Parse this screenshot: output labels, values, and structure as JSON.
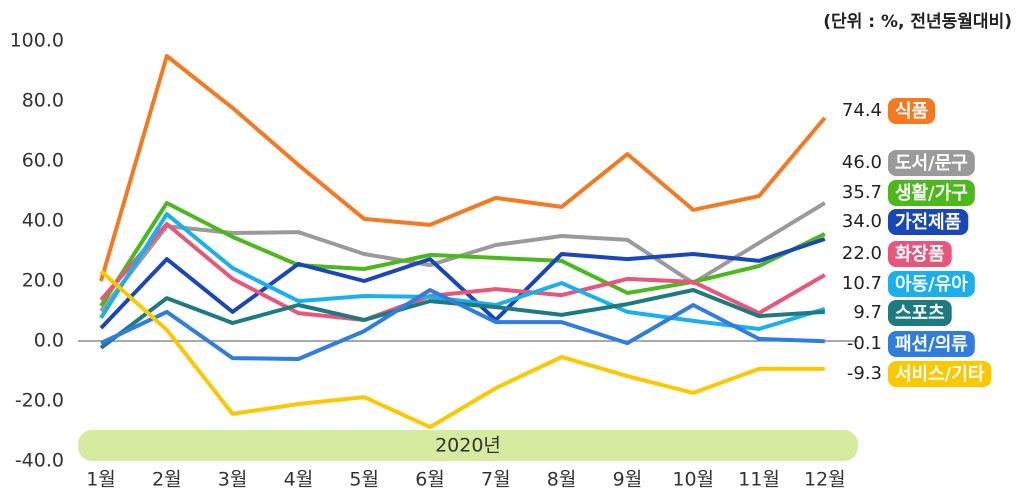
{
  "chart_data": {
    "type": "line",
    "unit_note": "(단위 : %, 전년동월대비)",
    "period_label": "2020년",
    "categories": [
      "1월",
      "2월",
      "3월",
      "4월",
      "5월",
      "6월",
      "7월",
      "8월",
      "9월",
      "10월",
      "11월",
      "12월"
    ],
    "ylim": [
      -40,
      100
    ],
    "yticks": [
      {
        "value": -40,
        "label": "-40.0"
      },
      {
        "value": -20,
        "label": "-20.0"
      },
      {
        "value": 0,
        "label": "0.0"
      },
      {
        "value": 20,
        "label": "20.0"
      },
      {
        "value": 40,
        "label": "40.0"
      },
      {
        "value": 60,
        "label": "60.0"
      },
      {
        "value": 80,
        "label": "80.0"
      },
      {
        "value": 100,
        "label": "100.0"
      }
    ],
    "series": [
      {
        "name": "식품",
        "color": "#f47920",
        "values": [
          20,
          95,
          77.7,
          58.7,
          40.7,
          38.7,
          47.7,
          44.7,
          62.3,
          43.7,
          48.3,
          74.4
        ],
        "value_labels": [
          null,
          null,
          null,
          null,
          null,
          null,
          null,
          null,
          null,
          null,
          null,
          "74.4"
        ]
      },
      {
        "name": "도서/문구",
        "color": "#9a9a9a",
        "values": [
          10,
          38.3,
          36,
          36.3,
          29,
          25.3,
          32,
          35,
          33.7,
          19.3,
          32.7,
          46.0
        ],
        "value_labels": [
          null,
          null,
          null,
          null,
          null,
          null,
          null,
          null,
          null,
          null,
          null,
          "46.0"
        ]
      },
      {
        "name": "생활/가구",
        "color": "#4cb81c",
        "values": [
          11.7,
          46,
          34.7,
          25.3,
          24,
          28.7,
          27.7,
          26.7,
          16,
          19.7,
          25,
          35.7
        ],
        "value_labels": [
          null,
          null,
          null,
          null,
          null,
          null,
          null,
          null,
          null,
          null,
          null,
          "35.7"
        ]
      },
      {
        "name": "가전제품",
        "color": "#1a47b8",
        "values": [
          4.3,
          27.3,
          9.7,
          25.7,
          20,
          27.3,
          7,
          29,
          27.3,
          29,
          26.7,
          34.0
        ],
        "value_labels": [
          null,
          null,
          null,
          null,
          null,
          null,
          null,
          null,
          null,
          null,
          null,
          "34.0"
        ]
      },
      {
        "name": "화장품",
        "color": "#e8567a",
        "values": [
          13.7,
          39,
          20.7,
          9.3,
          7,
          15,
          17.3,
          15.3,
          20.7,
          19.7,
          9.3,
          22.0
        ],
        "value_labels": [
          null,
          null,
          null,
          null,
          null,
          null,
          null,
          null,
          null,
          null,
          null,
          "22.0"
        ]
      },
      {
        "name": "아동/유아",
        "color": "#1ab0f0",
        "values": [
          7.7,
          42.3,
          24.3,
          13.3,
          15,
          14.7,
          12,
          19.3,
          9.7,
          6.7,
          4,
          10.7
        ],
        "value_labels": [
          null,
          null,
          null,
          null,
          null,
          null,
          null,
          null,
          null,
          null,
          null,
          "10.7"
        ]
      },
      {
        "name": "스포츠",
        "color": "#1d7b80",
        "values": [
          -2.3,
          14.3,
          6,
          12,
          7,
          13.3,
          11.3,
          8.7,
          12.3,
          17,
          8.3,
          9.7
        ],
        "value_labels": [
          null,
          null,
          null,
          null,
          null,
          null,
          null,
          null,
          null,
          null,
          null,
          "9.7"
        ]
      },
      {
        "name": "패션/의류",
        "color": "#2f7de1",
        "values": [
          -0.7,
          9.7,
          -5.7,
          -6,
          3.3,
          17,
          6.3,
          6.3,
          -0.7,
          12,
          0.7,
          -0.1
        ],
        "value_labels": [
          null,
          null,
          null,
          null,
          null,
          null,
          null,
          null,
          null,
          null,
          null,
          "-0.1"
        ]
      },
      {
        "name": "서비스/기타",
        "color": "#fcc800",
        "values": [
          23.3,
          3.7,
          -24.3,
          -21,
          -18.7,
          -28.7,
          -15.7,
          -5.3,
          -11.7,
          -17.3,
          -9.3,
          -9.3
        ],
        "value_labels": [
          null,
          null,
          null,
          null,
          null,
          null,
          null,
          null,
          null,
          null,
          null,
          "-9.3"
        ]
      }
    ]
  }
}
